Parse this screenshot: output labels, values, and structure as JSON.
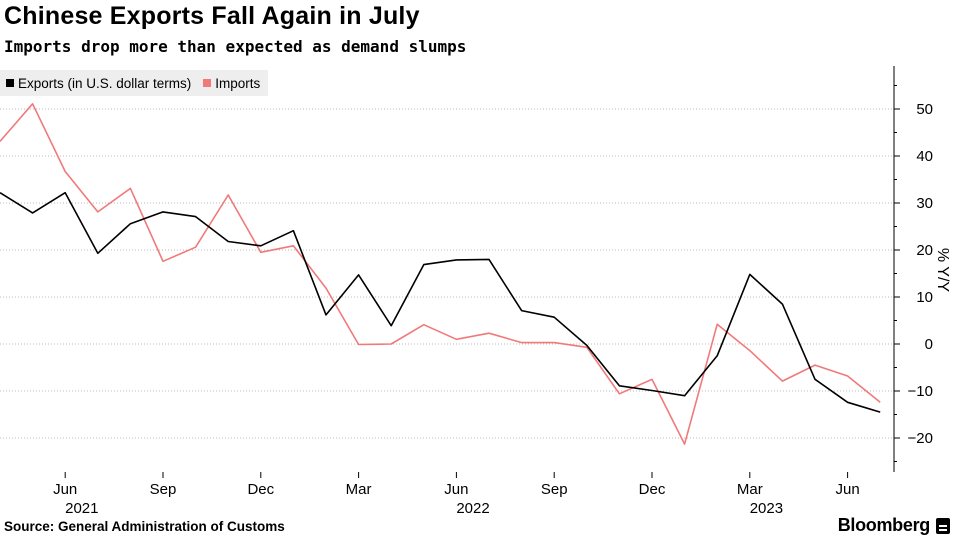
{
  "header": {
    "title": "Chinese Exports Fall Again in July",
    "subtitle": "Imports drop more than expected as demand slumps"
  },
  "footer": {
    "source": "Source: General Administration of Customs",
    "brand": "Bloomberg"
  },
  "chart_data": {
    "type": "line",
    "title": "Chinese Exports Fall Again in July",
    "subtitle": "Imports drop more than expected as demand slumps",
    "ylabel": "% Y/Y",
    "xlabel": "",
    "ylim": [
      -27,
      59
    ],
    "yticks": [
      50,
      40,
      30,
      20,
      10,
      0,
      -10,
      -20
    ],
    "grid": true,
    "legend_position": "top-left",
    "x": [
      "2021-04",
      "2021-05",
      "2021-06",
      "2021-07",
      "2021-08",
      "2021-09",
      "2021-10",
      "2021-11",
      "2021-12",
      "2022-01",
      "2022-02",
      "2022-03",
      "2022-04",
      "2022-05",
      "2022-06",
      "2022-07",
      "2022-08",
      "2022-09",
      "2022-10",
      "2022-11",
      "2022-12",
      "2023-01",
      "2023-02",
      "2023-03",
      "2023-04",
      "2023-05",
      "2023-06",
      "2023-07"
    ],
    "xtick_labels": [
      {
        "month": "2021-06",
        "label": "Jun"
      },
      {
        "month": "2021-09",
        "label": "Sep"
      },
      {
        "month": "2021-12",
        "label": "Dec"
      },
      {
        "month": "2022-03",
        "label": "Mar"
      },
      {
        "month": "2022-06",
        "label": "Jun"
      },
      {
        "month": "2022-09",
        "label": "Sep"
      },
      {
        "month": "2022-12",
        "label": "Dec"
      },
      {
        "month": "2023-03",
        "label": "Mar"
      },
      {
        "month": "2023-06",
        "label": "Jun"
      }
    ],
    "year_labels": [
      {
        "month": "2021-07",
        "label": "2021"
      },
      {
        "month": "2022-07",
        "label": "2022"
      },
      {
        "month": "2023-04",
        "label": "2023"
      }
    ],
    "series": [
      {
        "name": "Exports (in U.S. dollar terms)",
        "color": "#000000",
        "values": [
          32.2,
          27.9,
          32.2,
          19.3,
          25.6,
          28.1,
          27.1,
          21.8,
          20.9,
          24.1,
          6.2,
          14.7,
          3.9,
          16.9,
          17.9,
          18.0,
          7.1,
          5.7,
          -0.3,
          -8.9,
          -9.9,
          -11.0,
          -2.5,
          14.8,
          8.5,
          -7.5,
          -12.4,
          -14.5
        ]
      },
      {
        "name": "Imports",
        "color": "#f07a7a",
        "values": [
          43.1,
          51.1,
          36.7,
          28.1,
          33.1,
          17.6,
          20.6,
          31.7,
          19.5,
          20.9,
          11.9,
          -0.1,
          0.0,
          4.1,
          1.0,
          2.3,
          0.3,
          0.3,
          -0.7,
          -10.6,
          -7.5,
          -21.3,
          4.2,
          -1.4,
          -7.9,
          -4.5,
          -6.8,
          -12.4
        ]
      }
    ]
  }
}
